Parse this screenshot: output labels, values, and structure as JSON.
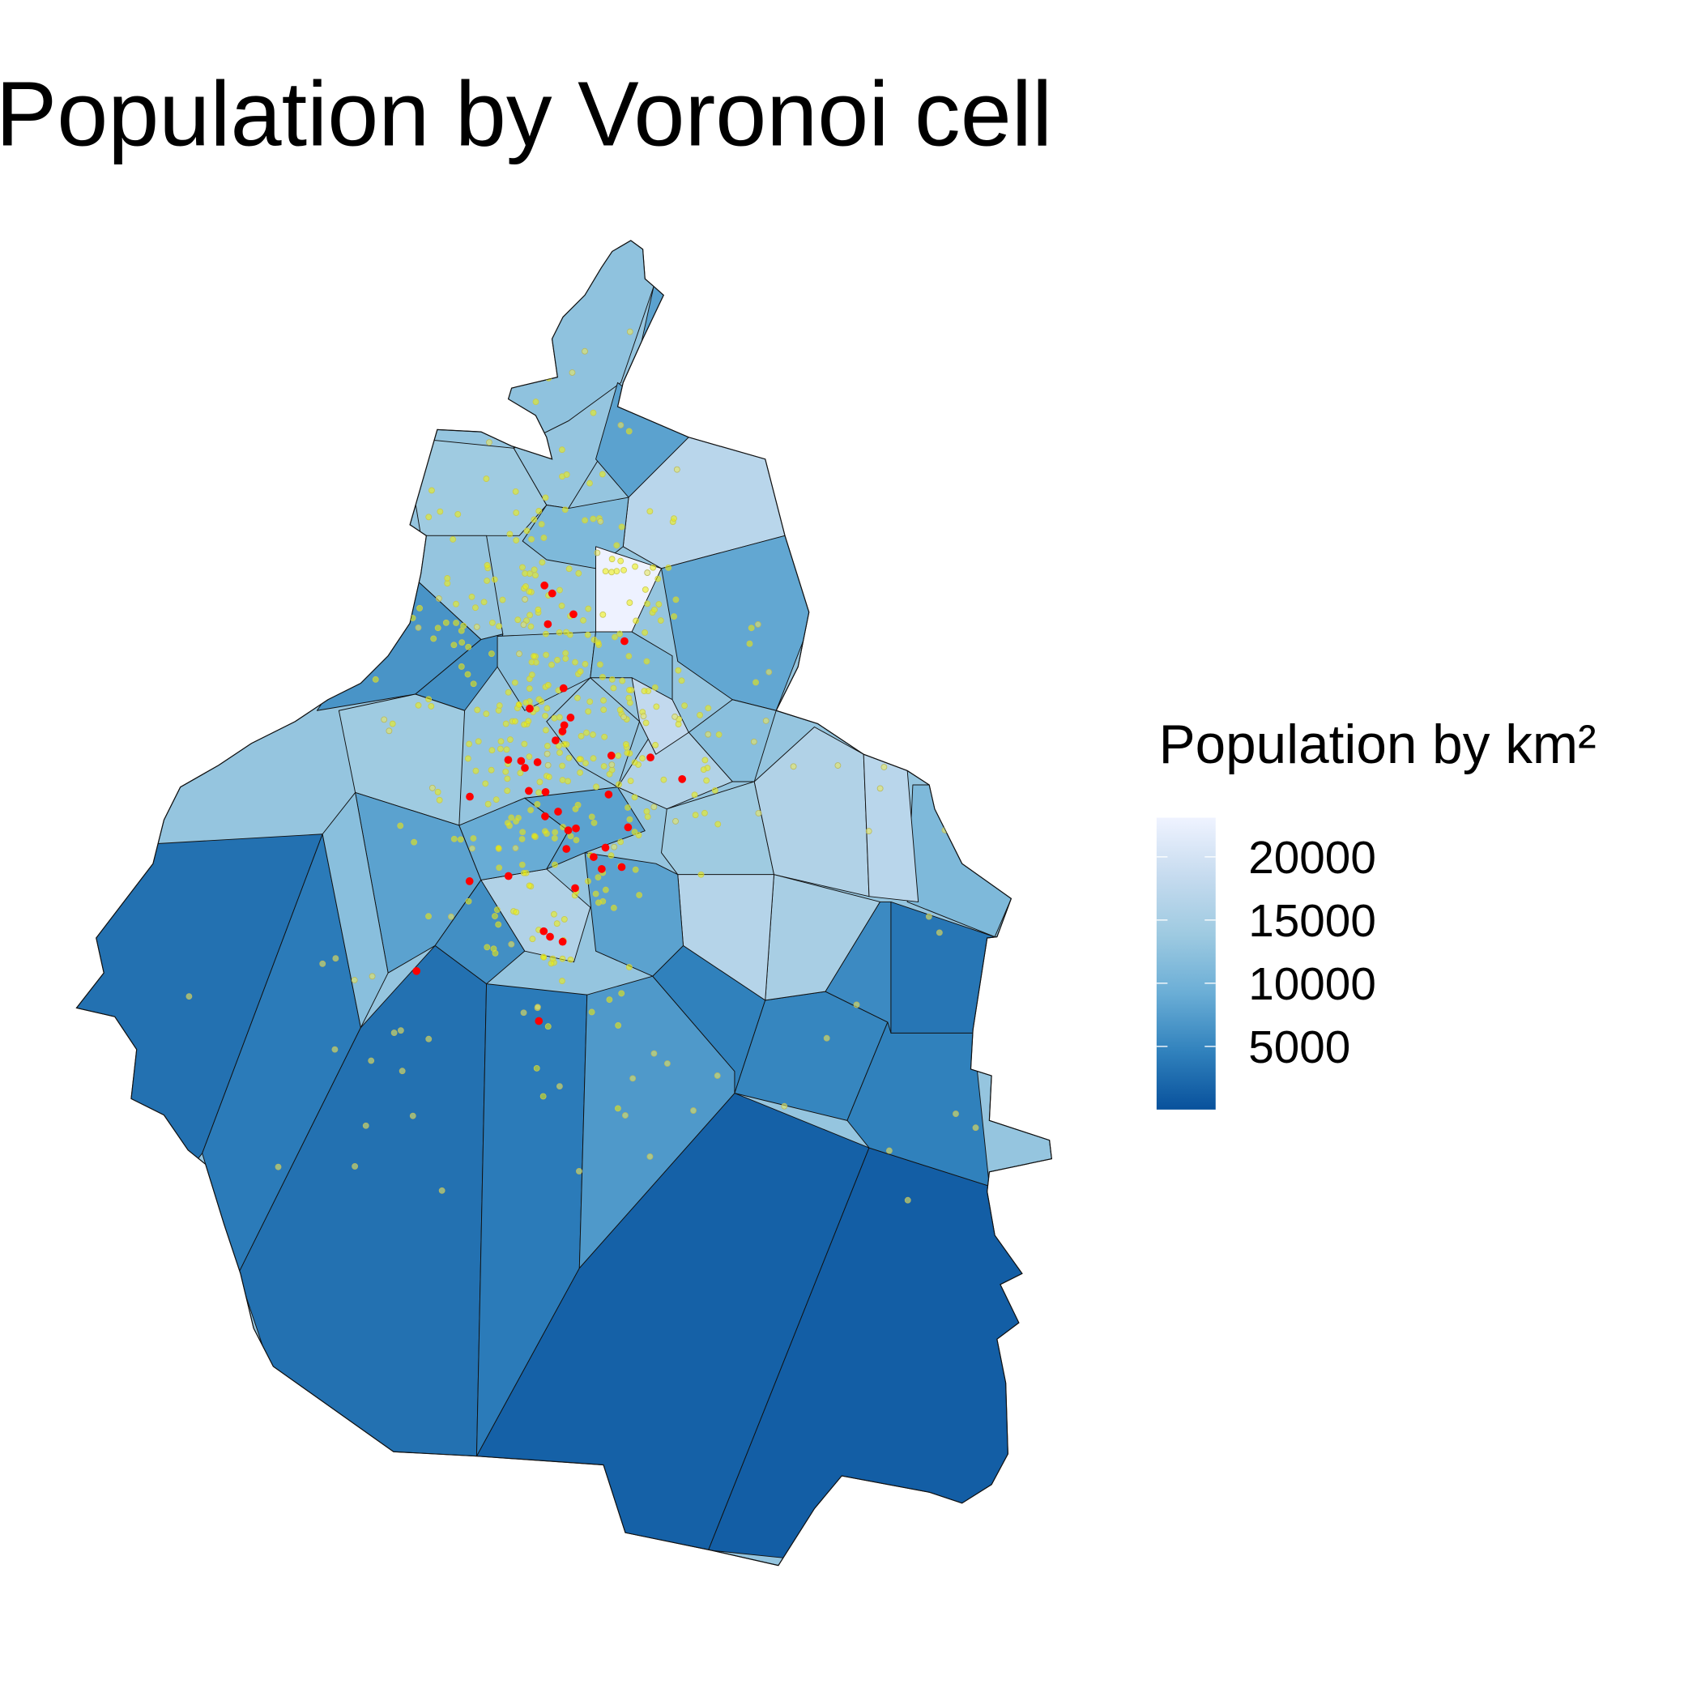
{
  "title": "Population by Voronoi cell",
  "legend": {
    "title": "Population by km²",
    "lim": [
      0,
      23100
    ],
    "ticks": [
      5000,
      10000,
      15000,
      20000
    ],
    "palette": [
      "#08519c",
      "#3182bd",
      "#6baed6",
      "#9ecae1",
      "#c6dbef",
      "#eff3ff"
    ]
  },
  "cells": [
    {
      "density": 13000
    },
    {
      "density": 1500
    },
    {
      "density": 1200
    },
    {
      "density": 3000
    },
    {
      "density": 4000
    },
    {
      "density": 3000
    },
    {
      "density": 4000
    },
    {
      "density": 7000
    },
    {
      "density": 4500
    },
    {
      "density": 5000
    },
    {
      "density": 4500
    },
    {
      "density": 5500
    },
    {
      "density": 3500
    },
    {
      "density": 11000
    },
    {
      "density": 14000
    },
    {
      "density": 13000
    },
    {
      "density": 12500
    },
    {
      "density": 8000
    },
    {
      "density": 8000
    },
    {
      "density": 17000
    },
    {
      "density": 11000
    },
    {
      "density": 23000
    },
    {
      "density": 13000
    },
    {
      "density": 6500
    },
    {
      "density": 6000
    },
    {
      "density": 14000
    },
    {
      "density": 8000
    },
    {
      "density": 12000
    },
    {
      "density": 6000
    },
    {
      "density": 16000
    },
    {
      "density": 8500
    },
    {
      "density": 12000
    },
    {
      "density": 16000
    },
    {
      "density": 14000
    },
    {
      "density": 16000
    },
    {
      "density": 15000
    },
    {
      "density": 16500
    },
    {
      "density": 8000
    },
    {
      "density": 9000
    },
    {
      "density": 12000
    },
    {
      "density": 11000
    },
    {
      "density": 18000
    },
    {
      "density": 13000
    },
    {
      "density": 8000
    },
    {
      "density": 17000
    }
  ]
}
